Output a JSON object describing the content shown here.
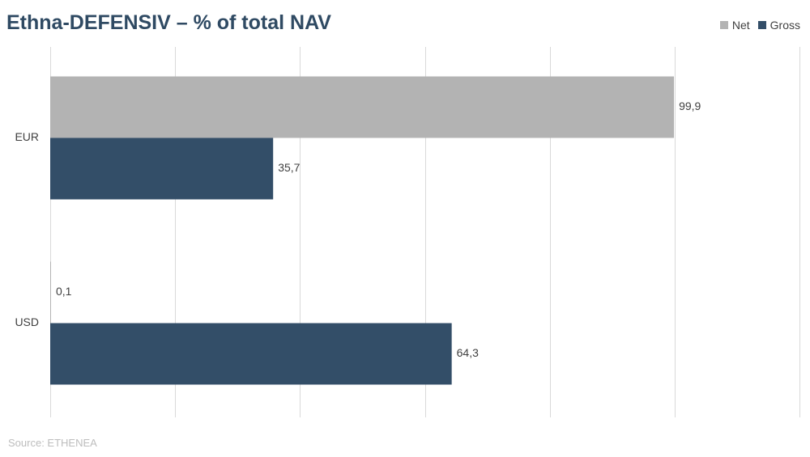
{
  "title": "Ethna-DEFENSIV – % of total NAV",
  "source": "Source: ETHENEA",
  "chart_data": {
    "type": "bar",
    "orientation": "horizontal",
    "categories": [
      "EUR",
      "USD"
    ],
    "series": [
      {
        "name": "Net",
        "color": "#b3b3b3",
        "values": [
          99.9,
          0.1
        ],
        "labels": [
          "99,9",
          "0,1"
        ]
      },
      {
        "name": "Gross",
        "color": "#334e68",
        "values": [
          35.7,
          64.3
        ],
        "labels": [
          "35,7",
          "64,3"
        ]
      }
    ],
    "xlim": [
      0,
      120
    ],
    "grid": true,
    "legend_position": "top-right",
    "tick_labels_visible": false
  }
}
